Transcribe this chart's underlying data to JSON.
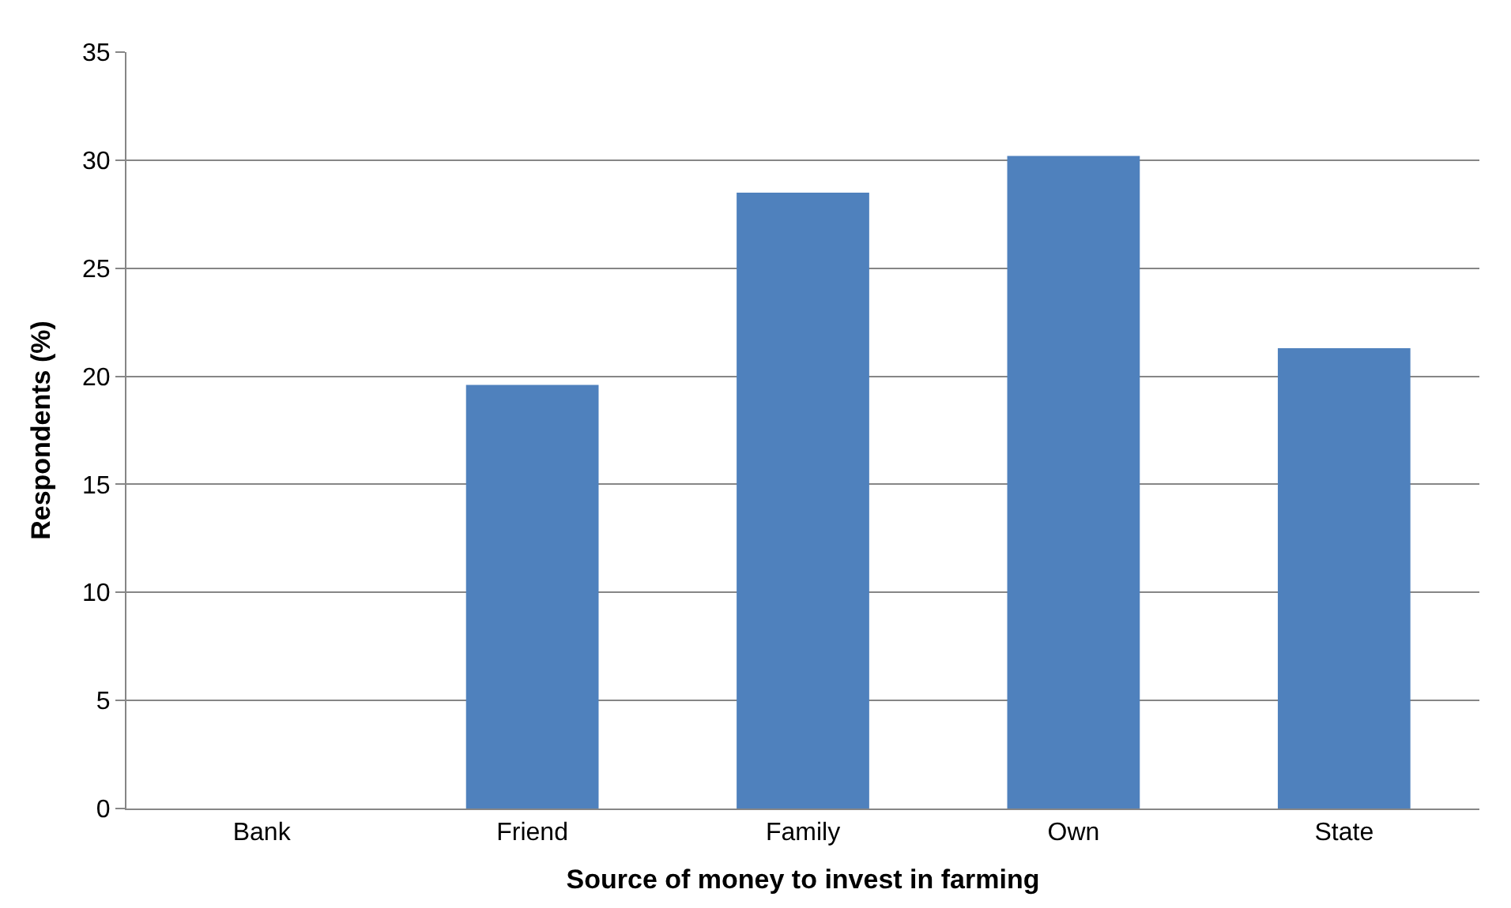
{
  "chart_data": {
    "type": "bar",
    "xlabel": "Source of money to invest in farming",
    "ylabel": "Respondents (%)",
    "categories": [
      "Bank",
      "Friend",
      "Family",
      "Own",
      "State"
    ],
    "values": [
      0,
      19.6,
      28.5,
      30.2,
      21.3
    ],
    "color": "#4f81bd",
    "ylim": [
      0,
      35
    ],
    "yticks": [
      0,
      5,
      10,
      15,
      20,
      25,
      30,
      35
    ],
    "grid": "y",
    "legend": false
  }
}
